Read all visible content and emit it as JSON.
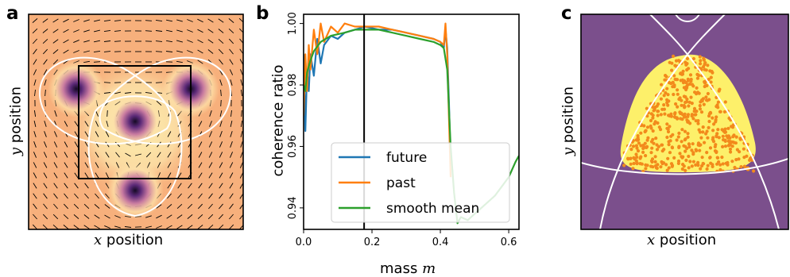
{
  "panels": {
    "a": {
      "letter": "a",
      "xlabel_var": "x",
      "xlabel_text": "position",
      "ylabel_var": "y",
      "ylabel_text": "position",
      "colors": {
        "background": "#f7b07c",
        "core": "#1a0a2e",
        "halo": "#fcf0a8"
      }
    },
    "b": {
      "letter": "b"
    },
    "c": {
      "letter": "c",
      "xlabel_var": "x",
      "xlabel_text": "position",
      "ylabel_var": "y",
      "ylabel_text": "position",
      "colors": {
        "background": "#7b4f8c",
        "region": "#fdf06a",
        "points": "#f28a1c"
      }
    }
  },
  "chart_data": {
    "type": "line",
    "xlabel_text": "mass",
    "xlabel_var": "m",
    "ylabel": "coherence ratio",
    "xlim": [
      0.0,
      0.63
    ],
    "ylim": [
      0.933,
      1.003
    ],
    "xticks": [
      "0.0",
      "0.2",
      "0.4",
      "0.6"
    ],
    "xtick_values": [
      0.0,
      0.2,
      0.4,
      0.6
    ],
    "yticks": [
      "0.94",
      "0.96",
      "0.98",
      "1.00"
    ],
    "ytick_values": [
      0.94,
      0.96,
      0.98,
      1.0
    ],
    "vline_x": 0.177,
    "legend_position": "lower-right",
    "series": [
      {
        "name": "future",
        "color": "#1f77b4",
        "x": [
          0.0,
          0.005,
          0.01,
          0.015,
          0.02,
          0.03,
          0.04,
          0.05,
          0.06,
          0.08,
          0.1,
          0.12,
          0.15,
          0.18,
          0.22,
          0.26,
          0.3,
          0.34,
          0.38,
          0.4,
          0.41,
          0.415,
          0.42,
          0.425,
          0.43
        ],
        "y": [
          0.99,
          0.965,
          0.985,
          0.978,
          0.99,
          0.983,
          0.995,
          0.987,
          0.993,
          0.996,
          0.995,
          0.997,
          0.998,
          0.999,
          0.998,
          0.998,
          0.997,
          0.996,
          0.995,
          0.994,
          0.992,
          0.998,
          0.992,
          0.975,
          0.955
        ]
      },
      {
        "name": "past",
        "color": "#ff7f0e",
        "x": [
          0.0,
          0.005,
          0.01,
          0.015,
          0.02,
          0.03,
          0.04,
          0.05,
          0.06,
          0.08,
          0.1,
          0.12,
          0.15,
          0.18,
          0.22,
          0.26,
          0.3,
          0.34,
          0.38,
          0.4,
          0.41,
          0.415,
          0.42,
          0.425,
          0.43
        ],
        "y": [
          0.97,
          0.99,
          0.978,
          0.993,
          0.985,
          0.998,
          0.99,
          1.0,
          0.994,
          0.999,
          0.997,
          1.0,
          0.999,
          0.999,
          0.999,
          0.998,
          0.997,
          0.996,
          0.995,
          0.994,
          0.993,
          1.0,
          0.99,
          0.97,
          0.95
        ]
      },
      {
        "name": "smooth mean",
        "color": "#2ca02c",
        "x": [
          0.0,
          0.005,
          0.01,
          0.02,
          0.03,
          0.05,
          0.08,
          0.12,
          0.15,
          0.18,
          0.22,
          0.26,
          0.3,
          0.34,
          0.38,
          0.4,
          0.41,
          0.42,
          0.43,
          0.44,
          0.45,
          0.46,
          0.48,
          0.5,
          0.52,
          0.54,
          0.56,
          0.58,
          0.6,
          0.62,
          0.63
        ],
        "y": [
          0.98,
          0.978,
          0.984,
          0.988,
          0.991,
          0.994,
          0.996,
          0.997,
          0.998,
          0.998,
          0.998,
          0.997,
          0.996,
          0.995,
          0.994,
          0.993,
          0.992,
          0.985,
          0.96,
          0.945,
          0.935,
          0.937,
          0.936,
          0.938,
          0.94,
          0.942,
          0.944,
          0.947,
          0.95,
          0.955,
          0.957
        ]
      }
    ]
  }
}
